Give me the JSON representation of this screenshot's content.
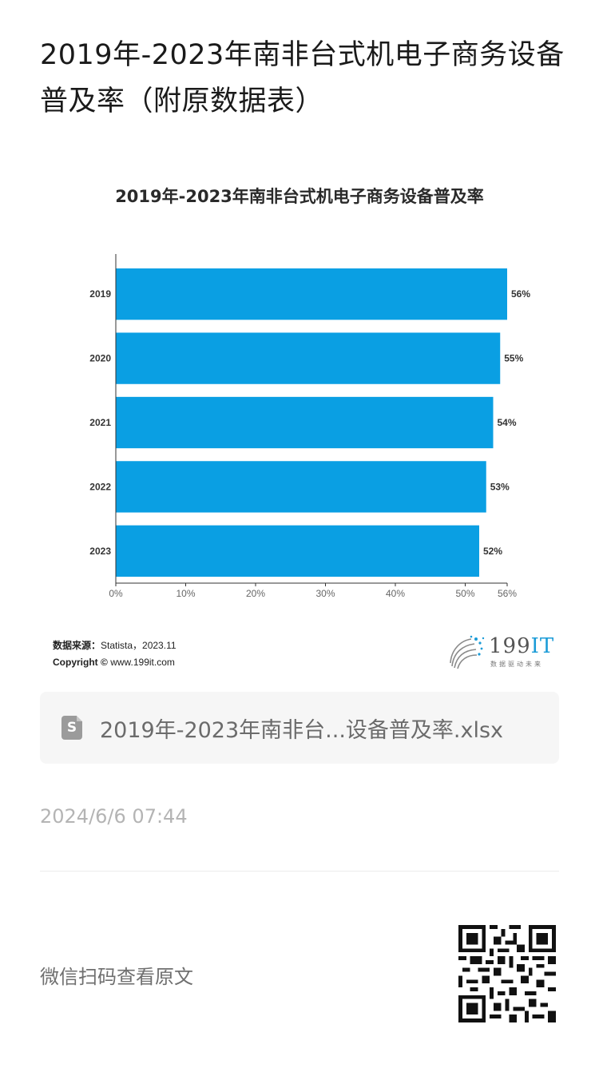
{
  "page": {
    "title": "2019年-2023年南非台式机电子商务设备普及率（附原数据表）"
  },
  "chart_data": {
    "type": "bar",
    "orientation": "horizontal",
    "title": "2019年-2023年南非台式机电子商务设备普及率",
    "categories": [
      "2019",
      "2020",
      "2021",
      "2022",
      "2023"
    ],
    "values": [
      56,
      55,
      54,
      53,
      52
    ],
    "value_labels": [
      "56%",
      "55%",
      "54%",
      "53%",
      "52%"
    ],
    "xlim": [
      0,
      56
    ],
    "x_ticks": [
      0,
      10,
      20,
      30,
      40,
      50,
      56
    ],
    "x_tick_labels": [
      "0%",
      "10%",
      "20%",
      "30%",
      "40%",
      "50%",
      "56%"
    ],
    "bar_color": "#0a9fe3",
    "grid": false,
    "legend": "none"
  },
  "source": {
    "label": "数据来源：",
    "text": "Statista，2023.11",
    "copyright_label": "Copyright ©",
    "copyright_text": "www.199it.com"
  },
  "logo": {
    "text_num": "199",
    "text_it": "IT",
    "subtitle": "数据驱动未来"
  },
  "file": {
    "icon": "spreadsheet-file-icon",
    "icon_letter": "S",
    "name": "2019年-2023年南非台...设备普及率.xlsx"
  },
  "timestamp": "2024/6/6 07:44",
  "footer": {
    "scan_text": "微信扫码查看原文",
    "qr_icon": "qr-code-icon"
  },
  "colors": {
    "accent": "#0a9fe3",
    "muted_text": "#b4b4b4"
  }
}
